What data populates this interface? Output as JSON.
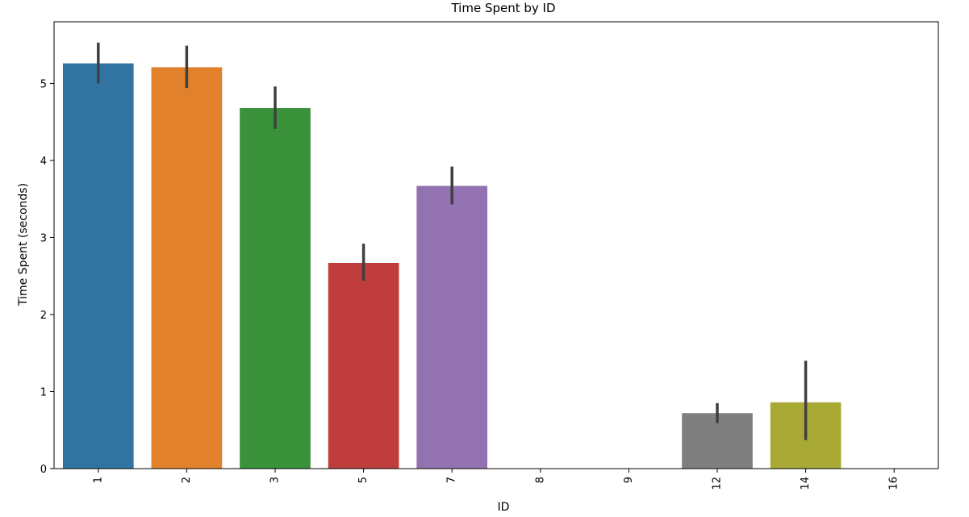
{
  "chart_data": {
    "type": "bar",
    "title": "Time Spent by ID",
    "xlabel": "ID",
    "ylabel": "Time Spent (seconds)",
    "categories": [
      "1",
      "2",
      "3",
      "5",
      "7",
      "8",
      "9",
      "12",
      "14",
      "16"
    ],
    "values": [
      5.26,
      5.21,
      4.68,
      2.67,
      3.67,
      0,
      0,
      0.72,
      0.86,
      0
    ],
    "error_low": [
      5.0,
      4.94,
      4.41,
      2.44,
      3.43,
      0,
      0,
      0.59,
      0.37,
      0
    ],
    "error_high": [
      5.53,
      5.49,
      4.96,
      2.92,
      3.92,
      0,
      0,
      0.85,
      1.4,
      0
    ],
    "colors": [
      "#3274a1",
      "#e1812c",
      "#3a923a",
      "#c03d3e",
      "#9372b2",
      "#845b53",
      "#d684bd",
      "#7f7f7f",
      "#a9aa35",
      "#2eb3c4"
    ],
    "error_bar_color": "#3f3f3f",
    "ylim": [
      0,
      5.8
    ],
    "yticks": [
      0,
      1,
      2,
      3,
      4,
      5
    ],
    "xtick_rotation": "vertical",
    "grid": false,
    "legend": "none"
  }
}
